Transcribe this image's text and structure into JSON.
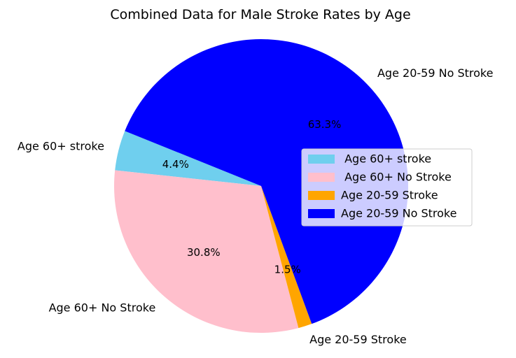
{
  "chart_data": {
    "type": "pie",
    "title": "Combined Data for Male Stroke Rates by Age",
    "labels": [
      "Age 60+ stroke",
      "Age 60+ No Stroke",
      "Age 20-59 Stroke",
      "Age 20-59 No Stroke"
    ],
    "legend_labels": [
      " Age 60+ stroke",
      " Age 60+ No Stroke",
      "Age 20-59 Stroke",
      "Age 20-59 No Stroke"
    ],
    "values": [
      4.4,
      30.8,
      1.5,
      63.3
    ],
    "percent_labels": [
      "4.4%",
      "30.8%",
      "1.5%",
      "63.3%"
    ],
    "colors": [
      "#6fcfee",
      "#ffbfcc",
      "#ffa500",
      "#0000ff"
    ],
    "legend_position": "center-right"
  }
}
